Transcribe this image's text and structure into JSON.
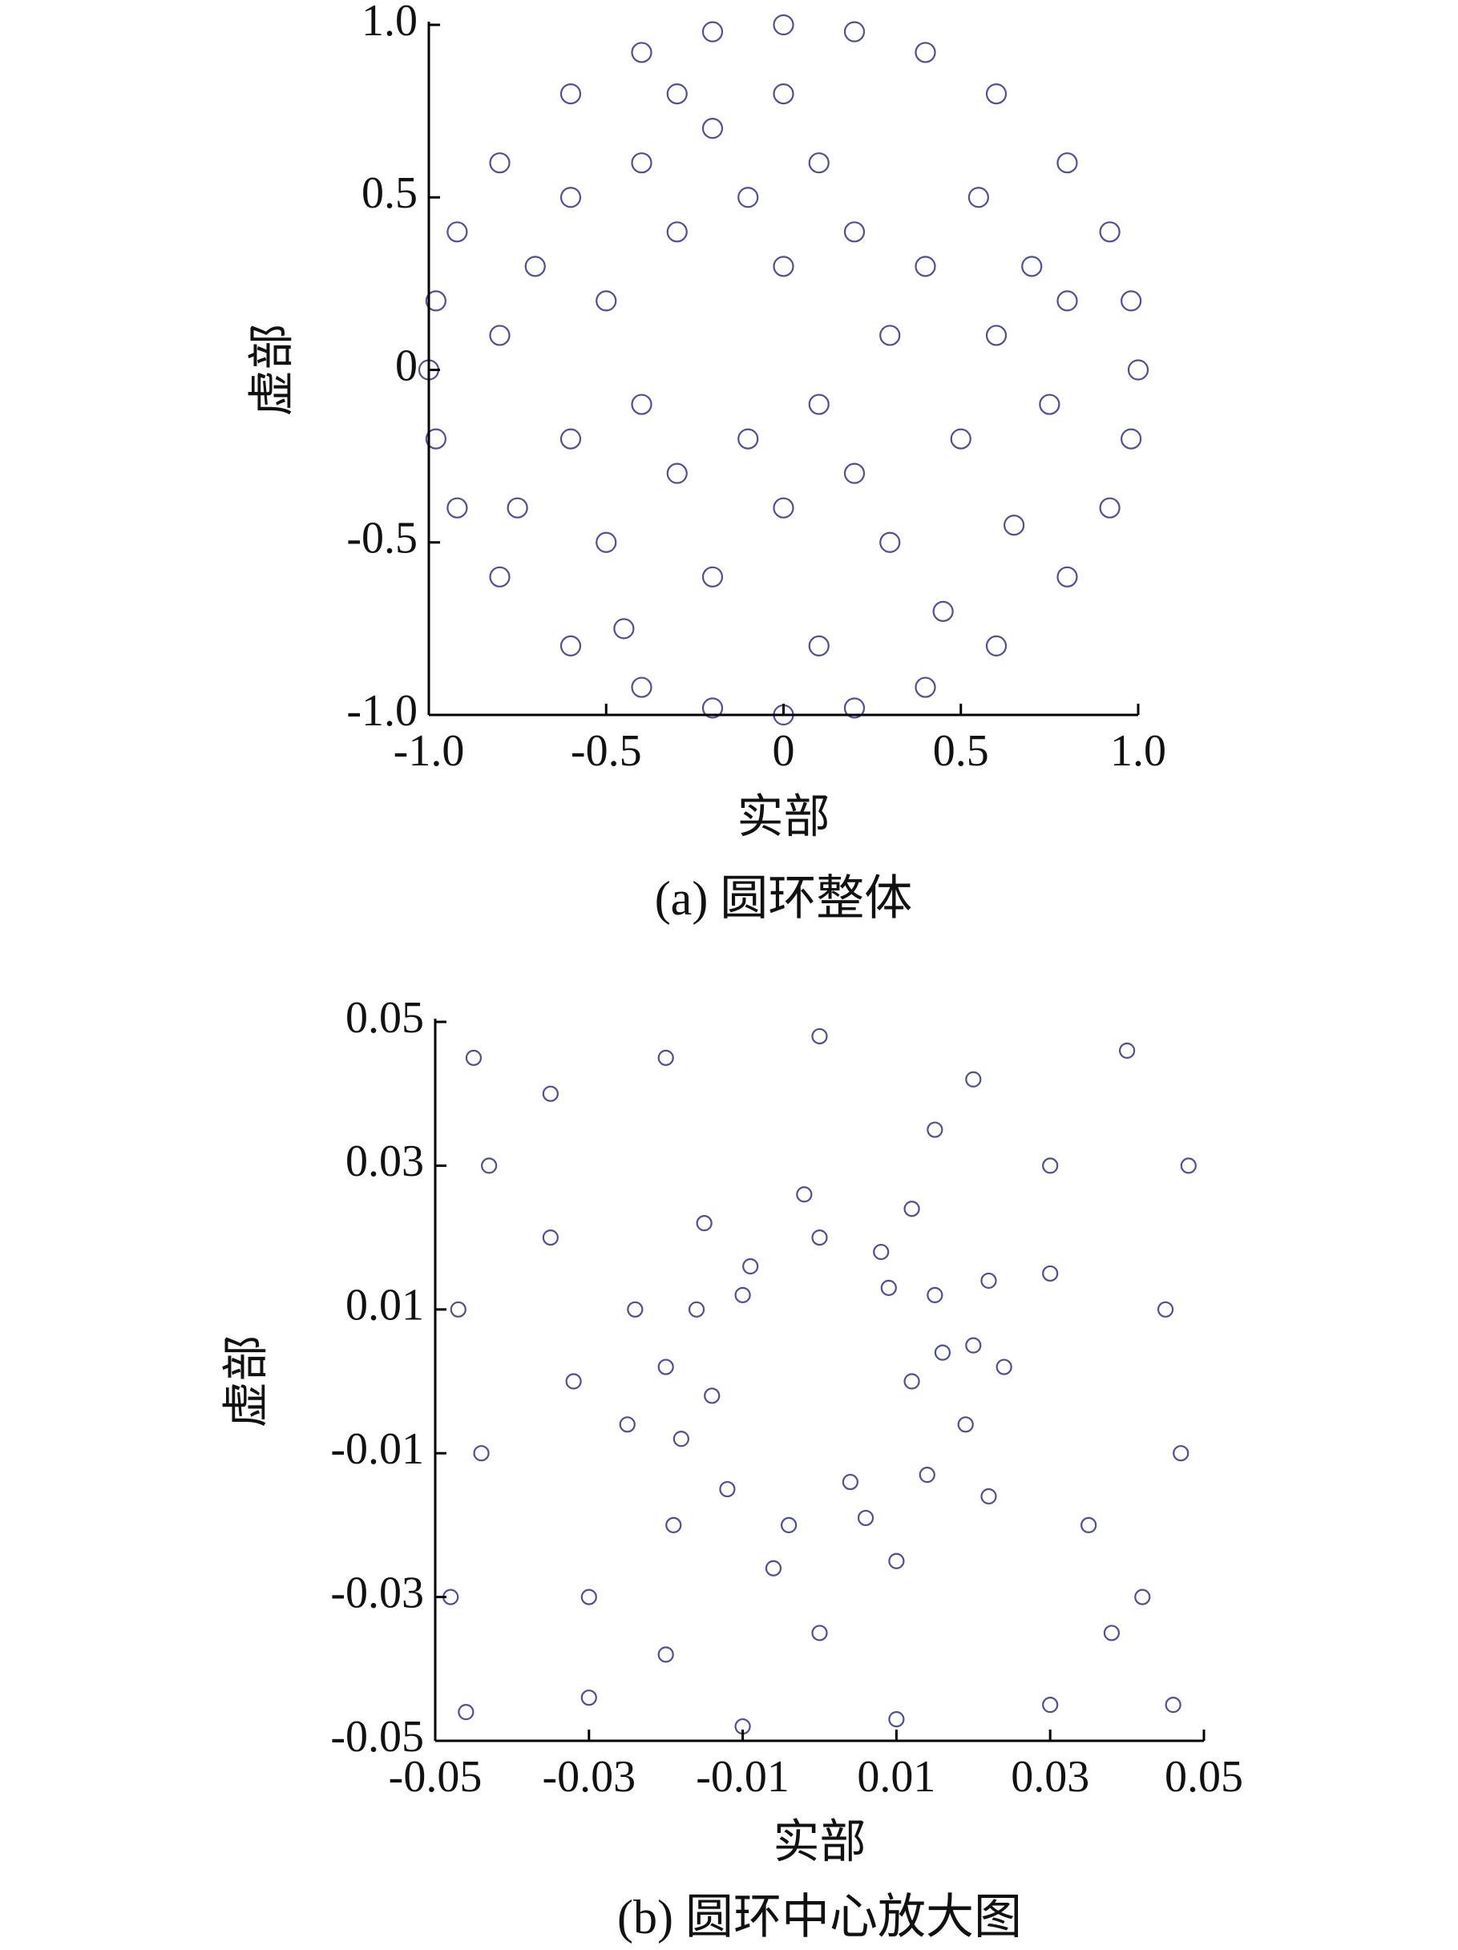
{
  "chart_data": [
    {
      "type": "scatter",
      "title": "(a) 圆环整体",
      "x_label": "实部",
      "y_label": "虚部",
      "color": "#3d3d85",
      "xlim": [
        -1,
        1
      ],
      "ylim": [
        -1,
        1
      ],
      "xticks": [
        {
          "value": -1,
          "label": "-1.0"
        },
        -0.5,
        0,
        0.5,
        {
          "value": 1,
          "label": "1.0"
        }
      ],
      "yticks": [
        {
          "value": -1,
          "label": "-1.0"
        },
        -0.5,
        0,
        0.5,
        {
          "value": 1,
          "label": "1.0"
        }
      ],
      "x": [
        1.0,
        0.98,
        0.98,
        0.92,
        0.92,
        0.8,
        0.8,
        0.6,
        0.6,
        0.4,
        0.4,
        0.2,
        0.2,
        0,
        0,
        -0.2,
        -0.2,
        -0.4,
        -0.4,
        -0.6,
        -0.6,
        -0.8,
        -0.8,
        -0.92,
        -0.92,
        -0.98,
        -0.98,
        -1,
        -0.7,
        -0.6,
        -0.5,
        -0.4,
        -0.3,
        -0.2,
        -0.1,
        0,
        0.1,
        0.2,
        -0.6,
        -0.5,
        -0.4,
        -0.3,
        -0.2,
        -0.1,
        0,
        0.1,
        0.2,
        0.3,
        0.3,
        0.4,
        0.5,
        0.55,
        0.6,
        0.65,
        0.7,
        0.75,
        0.8,
        -0.75,
        -0.8,
        -0.3,
        0.0,
        -0.45,
        0.1,
        0.45
      ],
      "y": [
        0,
        0.2,
        -0.2,
        0.4,
        -0.4,
        0.6,
        -0.6,
        0.8,
        -0.8,
        0.92,
        -0.92,
        0.98,
        -0.98,
        1,
        -1,
        0.98,
        -0.98,
        0.92,
        -0.92,
        0.8,
        -0.8,
        0.6,
        -0.6,
        0.4,
        -0.4,
        0.2,
        -0.2,
        0,
        0.3,
        0.5,
        0.2,
        0.6,
        0.4,
        0.7,
        0.5,
        0.3,
        0.6,
        0.4,
        -0.2,
        -0.5,
        -0.1,
        -0.3,
        -0.6,
        -0.2,
        -0.4,
        -0.1,
        -0.3,
        0.1,
        -0.5,
        0.3,
        -0.2,
        0.5,
        0.1,
        -0.45,
        0.3,
        -0.1,
        0.2,
        -0.4,
        0.1,
        0.8,
        0.8,
        -0.75,
        -0.8,
        -0.7
      ]
    },
    {
      "type": "scatter",
      "title": "(b) 圆环中心放大图",
      "x_label": "实部",
      "y_label": "虚部",
      "color": "#3d3d85",
      "xlim": [
        -0.05,
        0.05
      ],
      "ylim": [
        -0.05,
        0.05
      ],
      "xticks": [
        -0.05,
        -0.03,
        -0.01,
        0.01,
        0.03,
        0.05
      ],
      "yticks": [
        -0.05,
        -0.03,
        -0.01,
        0.01,
        0.03,
        0.05
      ],
      "x": [
        0.012,
        0.02,
        0.015,
        0.008,
        0,
        -0.009,
        -0.016,
        -0.02,
        -0.018,
        -0.012,
        -0.004,
        0.006,
        0.014,
        0.019,
        0.024,
        0.022,
        0.012,
        -0.002,
        -0.015,
        -0.024,
        -0.025,
        -0.019,
        -0.006,
        0.01,
        0.022,
        0.016,
        -0.01,
        0.004,
        -0.014,
        0.009,
        -0.045,
        -0.035,
        -0.02,
        0,
        0.02,
        0.04,
        0.048,
        0.045,
        0.047,
        0.042,
        0.046,
        0.03,
        0.01,
        -0.01,
        -0.03,
        -0.046,
        -0.048,
        -0.044,
        -0.047,
        -0.043,
        -0.035,
        -0.03,
        0.03,
        0.035,
        0.03,
        -0.032,
        0,
        0.015,
        -0.02,
        0.038
      ],
      "y": [
        0,
        0.005,
        0.012,
        0.018,
        0.02,
        0.016,
        0.01,
        0.002,
        -0.008,
        -0.015,
        -0.02,
        -0.019,
        -0.013,
        -0.006,
        0.002,
        0.014,
        0.024,
        0.026,
        0.022,
        0.01,
        -0.006,
        -0.02,
        -0.026,
        -0.025,
        -0.016,
        0.004,
        0.012,
        -0.014,
        -0.002,
        0.013,
        0.045,
        0.04,
        0.045,
        0.048,
        0.042,
        0.046,
        0.03,
        0.01,
        -0.01,
        -0.03,
        -0.045,
        -0.045,
        -0.047,
        -0.048,
        -0.044,
        -0.046,
        -0.03,
        -0.01,
        0.01,
        0.03,
        0.02,
        -0.03,
        0.03,
        -0.02,
        0.015,
        0,
        -0.035,
        0.035,
        -0.038,
        -0.035
      ]
    }
  ]
}
